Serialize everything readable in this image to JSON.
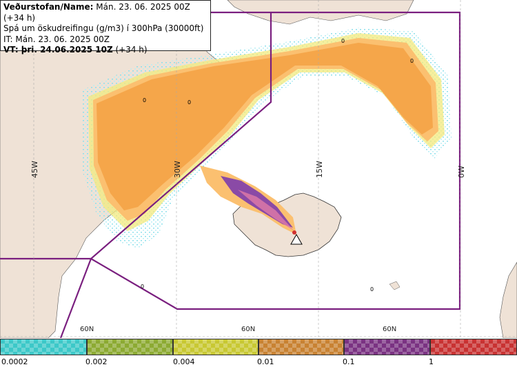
{
  "info": {
    "line1_bold": "Veðurstofan/Name:",
    "line1_rest": " Mán. 23. 06. 2025 00Z (+34 h)",
    "line2": "Spá um öskudreifingu (g/m3) í 300hPa (30000ft)",
    "line3": "IT: Mán. 23. 06. 2025 00Z",
    "line4_bold": "VT: þri. 24.06.2025 10Z",
    "line4_rest": " (+34 h)"
  },
  "graticule": {
    "longitudes": [
      "45W",
      "30W",
      "15W",
      "0W"
    ],
    "latitudes": [
      "60N",
      "60N",
      "60N"
    ]
  },
  "cloud_labels": [
    "0",
    "0",
    "0",
    "0",
    "0",
    "0"
  ],
  "legend": {
    "colors": [
      "#3cc8c8",
      "#8caa32",
      "#c8c832",
      "#c88232",
      "#7a3282",
      "#c83232"
    ],
    "ticks": [
      "0.0002",
      "0.002",
      "0.004",
      "0.01",
      "0.1",
      "1"
    ]
  },
  "colors": {
    "land": "#efe2d6",
    "sea": "#ffffff",
    "boundary": "#7a1f7f",
    "ash_orange": "#f5a64a",
    "ash_light": "#fbc070",
    "ash_yellow": "#f3ea7d",
    "ash_cyan": "#8ee0ec",
    "ash_purple": "#8a4aa6"
  }
}
